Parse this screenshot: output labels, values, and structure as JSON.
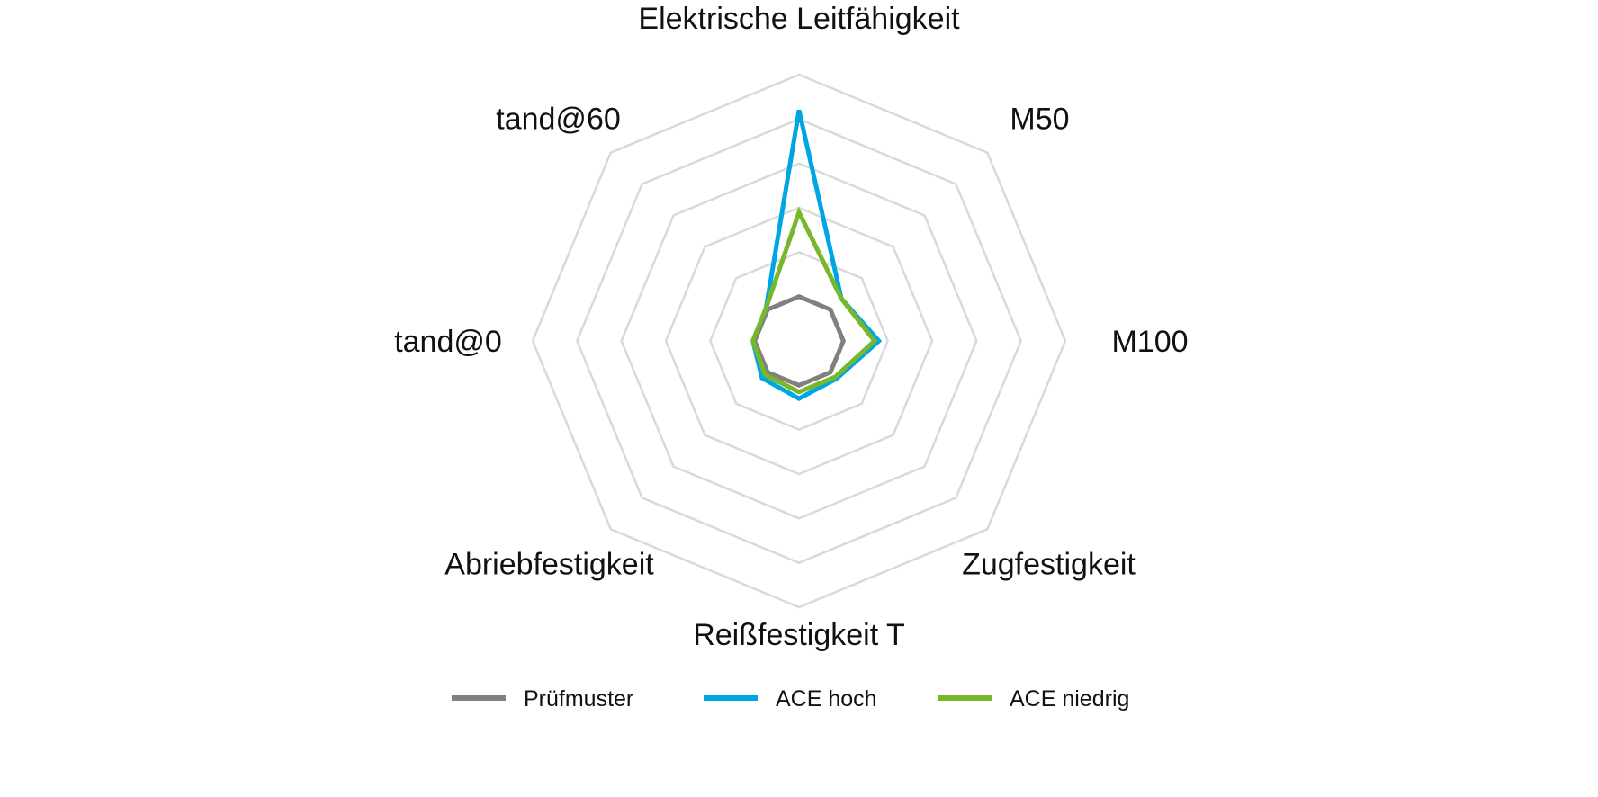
{
  "chart_data": {
    "type": "radar",
    "axes": [
      "Elektrische Leitfähigkeit",
      "M50",
      "M100",
      "Zugfestigkeit",
      "Reißfestigkeit T",
      "Abriebfestigkeit",
      "tand@0",
      "tand@60"
    ],
    "rlim": [
      0,
      6
    ],
    "rings": 6,
    "grid": true,
    "grid_color": "#d9d9d9",
    "series": [
      {
        "name": "Prüfmuster",
        "color": "#808080",
        "values": [
          1.0,
          1.0,
          1.0,
          1.0,
          1.0,
          1.0,
          1.0,
          1.0
        ]
      },
      {
        "name": "ACE hoch",
        "color": "#00a5e3",
        "values": [
          5.2,
          1.35,
          1.8,
          1.2,
          1.3,
          1.18,
          1.04,
          1.05
        ]
      },
      {
        "name": "ACE niedrig",
        "color": "#76b82a",
        "values": [
          2.9,
          1.35,
          1.7,
          1.15,
          1.15,
          1.08,
          1.04,
          1.05
        ]
      }
    ],
    "legend_position": "bottom-center"
  }
}
